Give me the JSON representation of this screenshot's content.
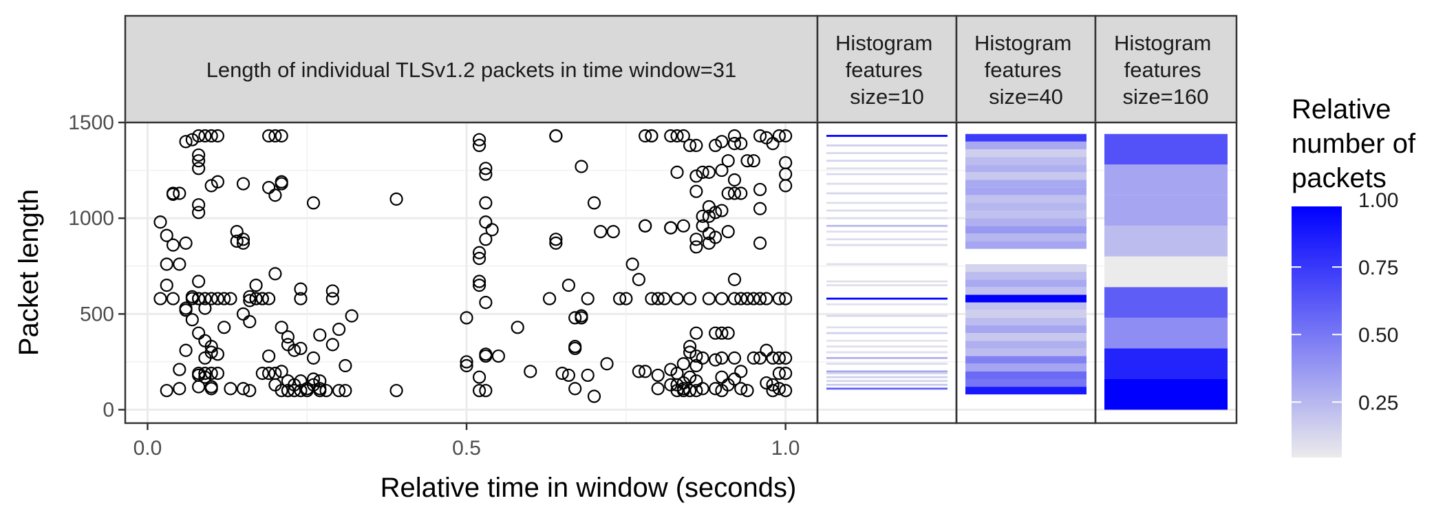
{
  "chart_data": {
    "type": "scatter",
    "xlabel": "Relative time in window (seconds)",
    "ylabel": "Packet length",
    "xlim": [
      -0.035,
      1.05
    ],
    "ylim": [
      -70,
      1500
    ],
    "x_ticks": [
      0.0,
      0.5,
      1.0
    ],
    "x_tick_labels": [
      "0.0",
      "0.5",
      "1.0"
    ],
    "y_ticks": [
      0,
      500,
      1000,
      1500
    ],
    "y_tick_labels": [
      "0",
      "500",
      "1000",
      "1500"
    ],
    "grid": true,
    "panels": [
      {
        "title": "Length of individual TLSv1.2 packets in time window=31"
      },
      {
        "title": "Histogram\nfeatures\nsize=10"
      },
      {
        "title": "Histogram\nfeatures\nsize=40"
      },
      {
        "title": "Histogram\nfeatures\nsize=160"
      }
    ],
    "points": [
      [
        0.02,
        580
      ],
      [
        0.02,
        980
      ],
      [
        0.03,
        650
      ],
      [
        0.03,
        760
      ],
      [
        0.03,
        910
      ],
      [
        0.03,
        100
      ],
      [
        0.04,
        580
      ],
      [
        0.04,
        860
      ],
      [
        0.04,
        1130
      ],
      [
        0.04,
        1125
      ],
      [
        0.05,
        760
      ],
      [
        0.05,
        210
      ],
      [
        0.05,
        110
      ],
      [
        0.05,
        1130
      ],
      [
        0.06,
        870
      ],
      [
        0.06,
        1400
      ],
      [
        0.06,
        310
      ],
      [
        0.06,
        530
      ],
      [
        0.06,
        520
      ],
      [
        0.07,
        580
      ],
      [
        0.07,
        470
      ],
      [
        0.07,
        1410
      ],
      [
        0.07,
        590
      ],
      [
        0.08,
        1430
      ],
      [
        0.08,
        1330
      ],
      [
        0.08,
        1300
      ],
      [
        0.08,
        1260
      ],
      [
        0.08,
        670
      ],
      [
        0.08,
        580
      ],
      [
        0.08,
        580
      ],
      [
        0.08,
        400
      ],
      [
        0.08,
        190
      ],
      [
        0.08,
        180
      ],
      [
        0.08,
        120
      ],
      [
        0.08,
        1070
      ],
      [
        0.08,
        1030
      ],
      [
        0.09,
        1430
      ],
      [
        0.09,
        580
      ],
      [
        0.09,
        530
      ],
      [
        0.09,
        360
      ],
      [
        0.09,
        270
      ],
      [
        0.09,
        190
      ],
      [
        0.09,
        170
      ],
      [
        0.1,
        1430
      ],
      [
        0.1,
        1170
      ],
      [
        0.1,
        580
      ],
      [
        0.1,
        330
      ],
      [
        0.1,
        300
      ],
      [
        0.1,
        190
      ],
      [
        0.1,
        120
      ],
      [
        0.1,
        110
      ],
      [
        0.11,
        1430
      ],
      [
        0.11,
        1190
      ],
      [
        0.11,
        580
      ],
      [
        0.11,
        290
      ],
      [
        0.11,
        190
      ],
      [
        0.12,
        580
      ],
      [
        0.12,
        430
      ],
      [
        0.13,
        580
      ],
      [
        0.13,
        110
      ],
      [
        0.14,
        930
      ],
      [
        0.14,
        880
      ],
      [
        0.15,
        500
      ],
      [
        0.15,
        870
      ],
      [
        0.15,
        1180
      ],
      [
        0.15,
        110
      ],
      [
        0.15,
        890
      ],
      [
        0.16,
        590
      ],
      [
        0.16,
        570
      ],
      [
        0.16,
        100
      ],
      [
        0.16,
        460
      ],
      [
        0.17,
        650
      ],
      [
        0.17,
        580
      ],
      [
        0.17,
        580
      ],
      [
        0.18,
        580
      ],
      [
        0.18,
        580
      ],
      [
        0.18,
        190
      ],
      [
        0.19,
        580
      ],
      [
        0.19,
        1430
      ],
      [
        0.19,
        1160
      ],
      [
        0.19,
        280
      ],
      [
        0.19,
        190
      ],
      [
        0.2,
        1430
      ],
      [
        0.2,
        710
      ],
      [
        0.2,
        1120
      ],
      [
        0.2,
        190
      ],
      [
        0.2,
        130
      ],
      [
        0.21,
        1430
      ],
      [
        0.21,
        1190
      ],
      [
        0.21,
        1180
      ],
      [
        0.21,
        430
      ],
      [
        0.21,
        200
      ],
      [
        0.21,
        100
      ],
      [
        0.22,
        380
      ],
      [
        0.22,
        340
      ],
      [
        0.22,
        150
      ],
      [
        0.22,
        100
      ],
      [
        0.22,
        100
      ],
      [
        0.23,
        310
      ],
      [
        0.23,
        130
      ],
      [
        0.23,
        100
      ],
      [
        0.24,
        630
      ],
      [
        0.24,
        580
      ],
      [
        0.24,
        320
      ],
      [
        0.24,
        150
      ],
      [
        0.24,
        100
      ],
      [
        0.25,
        100
      ],
      [
        0.25,
        110
      ],
      [
        0.26,
        1080
      ],
      [
        0.26,
        270
      ],
      [
        0.26,
        160
      ],
      [
        0.26,
        130
      ],
      [
        0.27,
        150
      ],
      [
        0.27,
        110
      ],
      [
        0.27,
        100
      ],
      [
        0.27,
        390
      ],
      [
        0.28,
        100
      ],
      [
        0.29,
        340
      ],
      [
        0.29,
        620
      ],
      [
        0.29,
        580
      ],
      [
        0.3,
        420
      ],
      [
        0.3,
        100
      ],
      [
        0.31,
        100
      ],
      [
        0.31,
        230
      ],
      [
        0.32,
        490
      ],
      [
        0.39,
        1100
      ],
      [
        0.39,
        100
      ],
      [
        0.5,
        480
      ],
      [
        0.5,
        250
      ],
      [
        0.5,
        230
      ],
      [
        0.52,
        1410
      ],
      [
        0.52,
        1380
      ],
      [
        0.52,
        820
      ],
      [
        0.52,
        790
      ],
      [
        0.52,
        670
      ],
      [
        0.52,
        650
      ],
      [
        0.52,
        170
      ],
      [
        0.52,
        100
      ],
      [
        0.53,
        1260
      ],
      [
        0.53,
        1230
      ],
      [
        0.53,
        1080
      ],
      [
        0.53,
        980
      ],
      [
        0.53,
        890
      ],
      [
        0.53,
        560
      ],
      [
        0.53,
        290
      ],
      [
        0.53,
        280
      ],
      [
        0.53,
        100
      ],
      [
        0.54,
        940
      ],
      [
        0.55,
        280
      ],
      [
        0.58,
        430
      ],
      [
        0.6,
        200
      ],
      [
        0.63,
        580
      ],
      [
        0.64,
        1430
      ],
      [
        0.64,
        1430
      ],
      [
        0.64,
        870
      ],
      [
        0.64,
        890
      ],
      [
        0.65,
        190
      ],
      [
        0.66,
        650
      ],
      [
        0.66,
        180
      ],
      [
        0.67,
        480
      ],
      [
        0.67,
        330
      ],
      [
        0.67,
        320
      ],
      [
        0.67,
        110
      ],
      [
        0.68,
        1270
      ],
      [
        0.68,
        480
      ],
      [
        0.68,
        490
      ],
      [
        0.69,
        580
      ],
      [
        0.69,
        180
      ],
      [
        0.7,
        1080
      ],
      [
        0.7,
        70
      ],
      [
        0.71,
        930
      ],
      [
        0.72,
        240
      ],
      [
        0.73,
        930
      ],
      [
        0.74,
        580
      ],
      [
        0.75,
        580
      ],
      [
        0.76,
        760
      ],
      [
        0.77,
        680
      ],
      [
        0.77,
        200
      ],
      [
        0.78,
        1430
      ],
      [
        0.78,
        960
      ],
      [
        0.78,
        960
      ],
      [
        0.78,
        200
      ],
      [
        0.79,
        1430
      ],
      [
        0.79,
        1430
      ],
      [
        0.79,
        580
      ],
      [
        0.8,
        180
      ],
      [
        0.8,
        580
      ],
      [
        0.8,
        110
      ],
      [
        0.81,
        580
      ],
      [
        0.82,
        1430
      ],
      [
        0.82,
        950
      ],
      [
        0.82,
        950
      ],
      [
        0.82,
        210
      ],
      [
        0.82,
        130
      ],
      [
        0.83,
        1430
      ],
      [
        0.83,
        1240
      ],
      [
        0.83,
        580
      ],
      [
        0.83,
        190
      ],
      [
        0.83,
        130
      ],
      [
        0.83,
        100
      ],
      [
        0.84,
        1430
      ],
      [
        0.84,
        960
      ],
      [
        0.84,
        110
      ],
      [
        0.84,
        240
      ],
      [
        0.84,
        140
      ],
      [
        0.84,
        100
      ],
      [
        0.85,
        1380
      ],
      [
        0.85,
        580
      ],
      [
        0.85,
        330
      ],
      [
        0.85,
        300
      ],
      [
        0.85,
        170
      ],
      [
        0.85,
        100
      ],
      [
        0.86,
        1380
      ],
      [
        0.86,
        1220
      ],
      [
        0.86,
        1140
      ],
      [
        0.86,
        890
      ],
      [
        0.86,
        850
      ],
      [
        0.86,
        400
      ],
      [
        0.86,
        280
      ],
      [
        0.86,
        230
      ],
      [
        0.86,
        150
      ],
      [
        0.86,
        100
      ],
      [
        0.87,
        1240
      ],
      [
        0.87,
        1010
      ],
      [
        0.87,
        960
      ],
      [
        0.87,
        270
      ],
      [
        0.87,
        110
      ],
      [
        0.88,
        580
      ],
      [
        0.88,
        1240
      ],
      [
        0.88,
        1060
      ],
      [
        0.88,
        1010
      ],
      [
        0.88,
        920
      ],
      [
        0.88,
        870
      ],
      [
        0.89,
        1380
      ],
      [
        0.89,
        1030
      ],
      [
        0.89,
        900
      ],
      [
        0.89,
        400
      ],
      [
        0.89,
        260
      ],
      [
        0.89,
        110
      ],
      [
        0.9,
        1400
      ],
      [
        0.9,
        1250
      ],
      [
        0.9,
        1040
      ],
      [
        0.9,
        580
      ],
      [
        0.9,
        400
      ],
      [
        0.9,
        270
      ],
      [
        0.9,
        170
      ],
      [
        0.9,
        100
      ],
      [
        0.91,
        1300
      ],
      [
        0.91,
        1130
      ],
      [
        0.91,
        930
      ],
      [
        0.91,
        400
      ],
      [
        0.91,
        130
      ],
      [
        0.92,
        1430
      ],
      [
        0.92,
        1390
      ],
      [
        0.92,
        1200
      ],
      [
        0.92,
        1130
      ],
      [
        0.92,
        680
      ],
      [
        0.92,
        580
      ],
      [
        0.92,
        270
      ],
      [
        0.92,
        160
      ],
      [
        0.93,
        1390
      ],
      [
        0.93,
        1130
      ],
      [
        0.93,
        580
      ],
      [
        0.93,
        200
      ],
      [
        0.93,
        110
      ],
      [
        0.94,
        1300
      ],
      [
        0.94,
        580
      ],
      [
        0.94,
        100
      ],
      [
        0.95,
        1300
      ],
      [
        0.95,
        580
      ],
      [
        0.95,
        270
      ],
      [
        0.96,
        1430
      ],
      [
        0.96,
        1150
      ],
      [
        0.96,
        1050
      ],
      [
        0.96,
        870
      ],
      [
        0.96,
        580
      ],
      [
        0.96,
        270
      ],
      [
        0.97,
        1420
      ],
      [
        0.97,
        580
      ],
      [
        0.97,
        310
      ],
      [
        0.97,
        140
      ],
      [
        0.98,
        1390
      ],
      [
        0.98,
        270
      ],
      [
        0.98,
        130
      ],
      [
        0.98,
        100
      ],
      [
        0.99,
        1430
      ],
      [
        0.99,
        580
      ],
      [
        0.99,
        270
      ],
      [
        0.99,
        190
      ],
      [
        0.99,
        110
      ],
      [
        1.0,
        1430
      ],
      [
        1.0,
        1290
      ],
      [
        1.0,
        1230
      ],
      [
        1.0,
        1170
      ],
      [
        1.0,
        580
      ],
      [
        1.0,
        270
      ],
      [
        1.0,
        190
      ],
      [
        1.0,
        100
      ]
    ],
    "hist10": {
      "bins": [
        [
          1425,
          1435,
          1.0
        ],
        [
          1375,
          1385,
          0.12
        ],
        [
          1335,
          1345,
          0.08
        ],
        [
          1295,
          1305,
          0.1
        ],
        [
          1255,
          1265,
          0.06
        ],
        [
          1225,
          1235,
          0.08
        ],
        [
          1175,
          1185,
          0.07
        ],
        [
          1125,
          1135,
          0.1
        ],
        [
          1075,
          1085,
          0.06
        ],
        [
          1035,
          1045,
          0.07
        ],
        [
          995,
          1005,
          0.06
        ],
        [
          955,
          965,
          0.22
        ],
        [
          925,
          935,
          0.06
        ],
        [
          885,
          895,
          0.07
        ],
        [
          855,
          865,
          0.07
        ],
        [
          755,
          765,
          0.05
        ],
        [
          665,
          675,
          0.05
        ],
        [
          645,
          655,
          0.05
        ],
        [
          575,
          585,
          1.0
        ],
        [
          545,
          555,
          0.04
        ],
        [
          485,
          495,
          0.08
        ],
        [
          425,
          435,
          0.05
        ],
        [
          395,
          405,
          0.12
        ],
        [
          355,
          365,
          0.04
        ],
        [
          325,
          335,
          0.05
        ],
        [
          295,
          305,
          0.06
        ],
        [
          265,
          275,
          0.25
        ],
        [
          235,
          245,
          0.07
        ],
        [
          195,
          205,
          0.3
        ],
        [
          185,
          195,
          0.1
        ],
        [
          165,
          175,
          0.12
        ],
        [
          145,
          155,
          0.1
        ],
        [
          125,
          135,
          0.15
        ],
        [
          105,
          115,
          0.6
        ]
      ]
    },
    "hist40": {
      "bins": [
        [
          1400,
          1440,
          0.75
        ],
        [
          1360,
          1400,
          0.28
        ],
        [
          1320,
          1360,
          0.12
        ],
        [
          1280,
          1320,
          0.2
        ],
        [
          1240,
          1280,
          0.25
        ],
        [
          1200,
          1240,
          0.15
        ],
        [
          1160,
          1200,
          0.28
        ],
        [
          1120,
          1160,
          0.3
        ],
        [
          1080,
          1120,
          0.18
        ],
        [
          1040,
          1080,
          0.22
        ],
        [
          1000,
          1040,
          0.18
        ],
        [
          960,
          1000,
          0.25
        ],
        [
          920,
          960,
          0.35
        ],
        [
          880,
          920,
          0.22
        ],
        [
          840,
          880,
          0.3
        ],
        [
          720,
          760,
          0.1
        ],
        [
          680,
          720,
          0.2
        ],
        [
          640,
          680,
          0.28
        ],
        [
          600,
          640,
          0.18
        ],
        [
          560,
          600,
          1.0
        ],
        [
          520,
          560,
          0.18
        ],
        [
          480,
          520,
          0.12
        ],
        [
          440,
          480,
          0.2
        ],
        [
          400,
          440,
          0.3
        ],
        [
          360,
          400,
          0.15
        ],
        [
          320,
          360,
          0.25
        ],
        [
          280,
          320,
          0.2
        ],
        [
          240,
          280,
          0.45
        ],
        [
          200,
          240,
          0.3
        ],
        [
          160,
          200,
          0.55
        ],
        [
          120,
          160,
          0.5
        ],
        [
          80,
          120,
          0.9
        ]
      ]
    },
    "hist160": {
      "bins": [
        [
          1280,
          1440,
          0.65
        ],
        [
          1120,
          1280,
          0.3
        ],
        [
          960,
          1120,
          0.3
        ],
        [
          800,
          960,
          0.2
        ],
        [
          640,
          800,
          0.0
        ],
        [
          480,
          640,
          0.6
        ],
        [
          320,
          480,
          0.4
        ],
        [
          160,
          320,
          0.85
        ],
        [
          0,
          160,
          1.0
        ]
      ]
    },
    "legend": {
      "title": "Relative\nnumber of\npackets",
      "ticks": [
        1.0,
        0.75,
        0.5,
        0.25
      ],
      "tick_labels": [
        "1.00",
        "0.75",
        "0.50",
        "0.25"
      ],
      "color_low": "#ebebeb",
      "color_high": "#0000ff"
    }
  }
}
